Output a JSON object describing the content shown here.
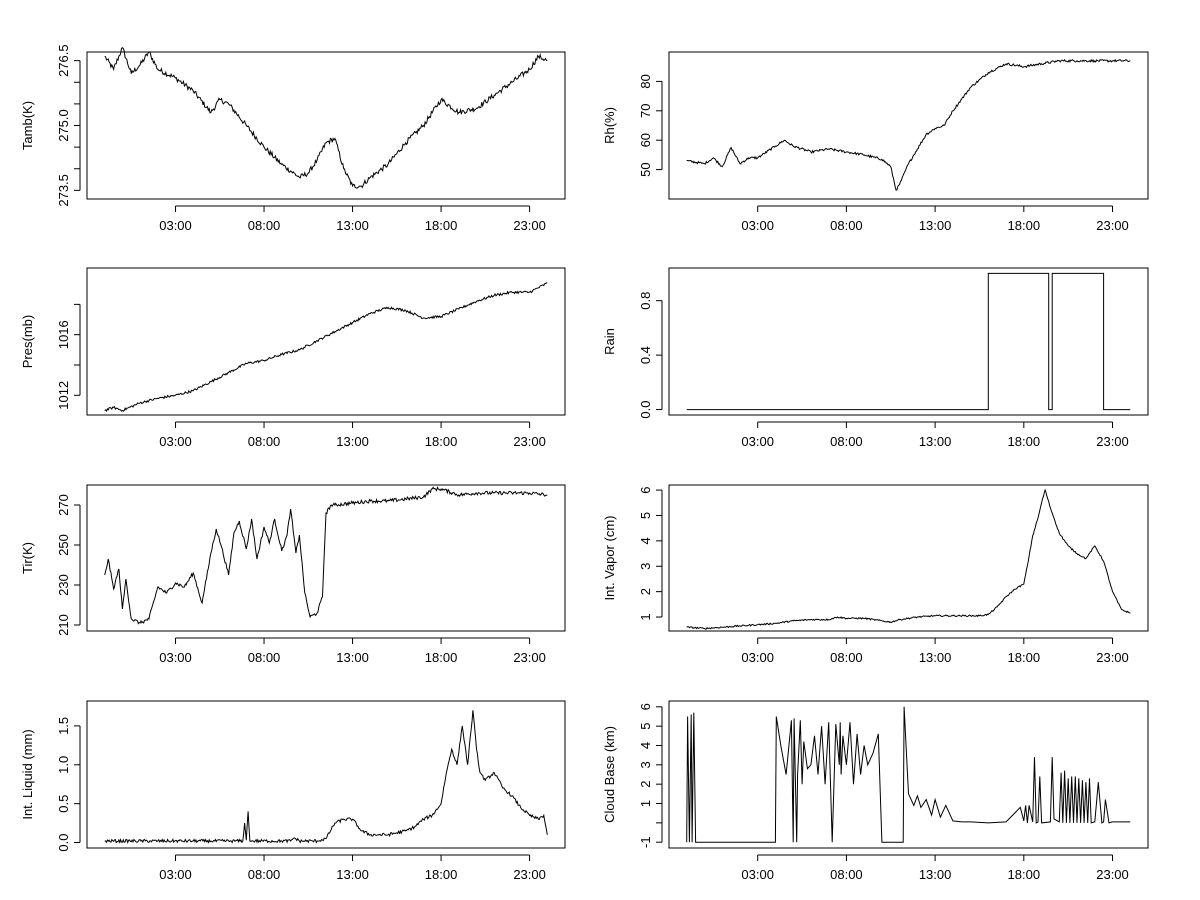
{
  "chart_data": [
    {
      "type": "line",
      "ylabel": "Tamb(K)",
      "xlabel": "",
      "x_unit": "hours",
      "xlim": [
        -2.0,
        25.0
      ],
      "ylim": [
        273.3,
        276.7
      ],
      "yticks": [
        273.5,
        274.0,
        274.5,
        275.0,
        275.5,
        276.0,
        276.5
      ],
      "ytick_labels": [
        "273.5",
        "",
        "",
        "275.0",
        "",
        "",
        "276.5"
      ],
      "xticks": [
        3,
        8,
        13,
        18,
        23
      ],
      "xtick_labels": [
        "03:00",
        "08:00",
        "13:00",
        "18:00",
        "23:00"
      ],
      "noise": 0.06,
      "series": [
        {
          "name": "Tamb",
          "x": [
            -1.0,
            -0.5,
            0.0,
            0.5,
            1.0,
            1.5,
            2.0,
            3.0,
            4.0,
            5.0,
            5.5,
            6.0,
            7.0,
            8.0,
            9.0,
            10.0,
            10.5,
            11.0,
            11.5,
            12.0,
            12.5,
            13.0,
            13.5,
            14.0,
            15.0,
            16.0,
            17.0,
            18.0,
            19.0,
            20.0,
            21.0,
            22.0,
            23.0,
            23.5,
            24.0
          ],
          "values": [
            276.6,
            276.3,
            276.8,
            276.2,
            276.4,
            276.7,
            276.3,
            276.1,
            275.8,
            275.3,
            275.6,
            275.5,
            275.0,
            274.5,
            274.1,
            273.8,
            273.9,
            274.2,
            274.6,
            274.7,
            274.0,
            273.6,
            273.6,
            273.8,
            274.1,
            274.6,
            275.0,
            275.6,
            275.3,
            275.4,
            275.7,
            276.0,
            276.3,
            276.6,
            276.5
          ]
        }
      ]
    },
    {
      "type": "line",
      "ylabel": "Rh(%)",
      "xlabel": "",
      "x_unit": "hours",
      "xlim": [
        -2.0,
        25.0
      ],
      "ylim": [
        40.0,
        90.0
      ],
      "yticks": [
        50,
        60,
        70,
        80
      ],
      "ytick_labels": [
        "50",
        "60",
        "70",
        "80"
      ],
      "xticks": [
        3,
        8,
        13,
        18,
        23
      ],
      "xtick_labels": [
        "03:00",
        "08:00",
        "13:00",
        "18:00",
        "23:00"
      ],
      "noise": 0.4,
      "series": [
        {
          "name": "Rh",
          "x": [
            -1.0,
            0.0,
            0.5,
            1.0,
            1.5,
            2.0,
            2.5,
            3.0,
            4.0,
            4.5,
            5.0,
            6.0,
            7.0,
            8.0,
            9.0,
            10.0,
            10.5,
            10.8,
            11.0,
            11.5,
            12.0,
            12.5,
            13.0,
            13.5,
            14.0,
            14.5,
            15.0,
            16.0,
            17.0,
            18.0,
            19.0,
            20.0,
            21.0,
            22.0,
            23.0,
            24.0
          ],
          "values": [
            53.0,
            52.0,
            54.0,
            51.0,
            57.5,
            52.0,
            54.0,
            54.0,
            58.0,
            60.0,
            58.0,
            56.0,
            57.0,
            56.0,
            55.0,
            53.5,
            51.0,
            43.0,
            45.0,
            52.0,
            57.0,
            62.0,
            64.0,
            65.0,
            70.0,
            74.0,
            78.0,
            83.0,
            86.0,
            85.0,
            86.0,
            87.0,
            87.0,
            87.0,
            87.0,
            87.0
          ]
        }
      ]
    },
    {
      "type": "line",
      "ylabel": "Pres(mb)",
      "xlabel": "",
      "x_unit": "hours",
      "xlim": [
        -2.0,
        25.0
      ],
      "ylim": [
        1010.7,
        1020.4
      ],
      "yticks": [
        1012,
        1014,
        1016,
        1018
      ],
      "ytick_labels": [
        "1012",
        "",
        "1016",
        ""
      ],
      "xticks": [
        3,
        8,
        13,
        18,
        23
      ],
      "xtick_labels": [
        "03:00",
        "08:00",
        "13:00",
        "18:00",
        "23:00"
      ],
      "noise": 0.08,
      "series": [
        {
          "name": "Pres",
          "x": [
            -1.0,
            -0.5,
            0.0,
            1.0,
            2.0,
            3.0,
            4.0,
            5.0,
            6.0,
            7.0,
            8.0,
            9.0,
            10.0,
            11.0,
            12.0,
            13.0,
            14.0,
            15.0,
            16.0,
            17.0,
            18.0,
            19.0,
            20.0,
            21.0,
            22.0,
            23.0,
            24.0
          ],
          "values": [
            1011.0,
            1011.2,
            1011.0,
            1011.5,
            1011.8,
            1012.0,
            1012.3,
            1012.9,
            1013.5,
            1014.1,
            1014.3,
            1014.7,
            1015.0,
            1015.6,
            1016.2,
            1016.8,
            1017.4,
            1017.8,
            1017.6,
            1017.1,
            1017.2,
            1017.7,
            1018.2,
            1018.6,
            1018.8,
            1018.8,
            1019.4
          ]
        }
      ]
    },
    {
      "type": "line",
      "ylabel": "Rain",
      "xlabel": "",
      "x_unit": "hours",
      "xlim": [
        -2.0,
        25.0
      ],
      "ylim": [
        -0.04,
        1.04
      ],
      "yticks": [
        0.0,
        0.4,
        0.8
      ],
      "ytick_labels": [
        "0.0",
        "0.4",
        "0.8"
      ],
      "xticks": [
        3,
        8,
        13,
        18,
        23
      ],
      "xtick_labels": [
        "03:00",
        "08:00",
        "13:00",
        "18:00",
        "23:00"
      ],
      "noise": 0,
      "series": [
        {
          "name": "Rain",
          "x": [
            -1.0,
            16.0,
            16.0,
            19.4,
            19.4,
            19.6,
            19.6,
            22.5,
            22.5,
            24.0
          ],
          "values": [
            0,
            0,
            1,
            1,
            0,
            0,
            1,
            1,
            0,
            0
          ]
        }
      ]
    },
    {
      "type": "line",
      "ylabel": "Tir(K)",
      "xlabel": "",
      "x_unit": "hours",
      "xlim": [
        -2.0,
        25.0
      ],
      "ylim": [
        207.0,
        280.0
      ],
      "yticks": [
        210,
        230,
        250,
        270
      ],
      "ytick_labels": [
        "210",
        "230",
        "250",
        "270"
      ],
      "xticks": [
        3,
        8,
        13,
        18,
        23
      ],
      "xtick_labels": [
        "03:00",
        "08:00",
        "13:00",
        "18:00",
        "23:00"
      ],
      "noise": 0.9,
      "series": [
        {
          "name": "Tir",
          "x": [
            -1.0,
            -0.8,
            -0.5,
            -0.2,
            0.0,
            0.2,
            0.5,
            1.0,
            1.5,
            2.0,
            2.5,
            3.0,
            3.5,
            4.0,
            4.5,
            5.0,
            5.3,
            5.6,
            6.0,
            6.3,
            6.6,
            7.0,
            7.3,
            7.6,
            8.0,
            8.3,
            8.6,
            9.0,
            9.3,
            9.5,
            9.8,
            10.0,
            10.3,
            10.6,
            11.0,
            11.3,
            11.5,
            11.8,
            12.0,
            13.0,
            14.0,
            15.0,
            16.0,
            17.0,
            17.5,
            18.0,
            19.0,
            20.0,
            21.0,
            22.0,
            23.0,
            24.0
          ],
          "values": [
            235.0,
            243.0,
            228.0,
            238.0,
            218.0,
            233.0,
            213.0,
            211.0,
            213.0,
            229.0,
            226.0,
            231.0,
            229.0,
            236.0,
            221.0,
            246.0,
            258.0,
            249.0,
            235.0,
            256.0,
            262.0,
            248.0,
            263.0,
            243.0,
            259.0,
            251.0,
            263.0,
            247.0,
            255.0,
            268.0,
            246.0,
            255.0,
            226.0,
            214.0,
            216.0,
            224.0,
            266.0,
            270.0,
            270.0,
            271.0,
            272.0,
            272.0,
            273.0,
            274.0,
            278.0,
            278.0,
            275.0,
            276.0,
            276.0,
            276.0,
            276.0,
            275.0
          ]
        }
      ]
    },
    {
      "type": "line",
      "ylabel": "Int. Vapor (cm)",
      "xlabel": "",
      "x_unit": "hours",
      "xlim": [
        -2.0,
        25.0
      ],
      "ylim": [
        0.45,
        6.2
      ],
      "yticks": [
        1,
        2,
        3,
        4,
        5,
        6
      ],
      "ytick_labels": [
        "1",
        "2",
        "3",
        "4",
        "5",
        "6"
      ],
      "xticks": [
        3,
        8,
        13,
        18,
        23
      ],
      "xtick_labels": [
        "03:00",
        "08:00",
        "13:00",
        "18:00",
        "23:00"
      ],
      "noise": 0.03,
      "series": [
        {
          "name": "Int. Vapor",
          "x": [
            -1.0,
            0.0,
            1.0,
            2.0,
            3.0,
            4.0,
            5.0,
            6.0,
            7.0,
            7.5,
            8.0,
            9.0,
            10.0,
            10.5,
            11.0,
            12.0,
            13.0,
            14.0,
            15.0,
            15.5,
            16.0,
            16.5,
            17.0,
            17.5,
            18.0,
            18.3,
            18.5,
            18.8,
            19.0,
            19.2,
            19.5,
            20.0,
            20.5,
            21.0,
            21.5,
            22.0,
            22.5,
            23.0,
            23.5,
            24.0
          ],
          "values": [
            0.6,
            0.55,
            0.6,
            0.65,
            0.7,
            0.75,
            0.85,
            0.9,
            0.9,
            1.0,
            0.95,
            0.95,
            0.85,
            0.8,
            0.9,
            1.0,
            1.05,
            1.05,
            1.05,
            1.05,
            1.1,
            1.4,
            1.8,
            2.1,
            2.3,
            3.4,
            4.2,
            4.9,
            5.5,
            6.0,
            5.3,
            4.3,
            3.8,
            3.5,
            3.3,
            3.8,
            3.2,
            2.0,
            1.3,
            1.15
          ]
        }
      ]
    },
    {
      "type": "line",
      "ylabel": "Int. Liquid (mm)",
      "xlabel": "",
      "x_unit": "hours",
      "xlim": [
        -2.0,
        25.0
      ],
      "ylim": [
        -0.07,
        1.82
      ],
      "yticks": [
        0.0,
        0.5,
        1.0,
        1.5
      ],
      "ytick_labels": [
        "0.0",
        "0.5",
        "1.0",
        "1.5"
      ],
      "xticks": [
        3,
        8,
        13,
        18,
        23
      ],
      "xtick_labels": [
        "03:00",
        "08:00",
        "13:00",
        "18:00",
        "23:00"
      ],
      "noise": 0.02,
      "series": [
        {
          "name": "Int. Liquid",
          "x": [
            -1.0,
            5.0,
            6.0,
            6.8,
            6.9,
            7.0,
            7.1,
            7.2,
            7.3,
            7.5,
            9.0,
            9.5,
            9.7,
            10.0,
            11.0,
            11.5,
            12.0,
            12.5,
            13.0,
            13.5,
            14.0,
            15.0,
            16.0,
            16.5,
            17.0,
            17.5,
            18.0,
            18.3,
            18.6,
            18.9,
            19.2,
            19.5,
            19.8,
            20.0,
            20.2,
            20.5,
            21.0,
            21.5,
            22.0,
            22.5,
            23.0,
            23.5,
            23.8,
            24.0
          ],
          "values": [
            0.02,
            0.02,
            0.02,
            0.02,
            0.25,
            0.03,
            0.4,
            0.02,
            0.02,
            0.02,
            0.02,
            0.02,
            0.06,
            0.02,
            0.02,
            0.05,
            0.25,
            0.3,
            0.3,
            0.15,
            0.1,
            0.1,
            0.15,
            0.2,
            0.3,
            0.35,
            0.5,
            0.9,
            1.2,
            1.0,
            1.5,
            1.0,
            1.7,
            1.2,
            0.9,
            0.8,
            0.9,
            0.7,
            0.6,
            0.45,
            0.35,
            0.3,
            0.35,
            0.1
          ]
        }
      ]
    },
    {
      "type": "line",
      "ylabel": "Cloud Base (km)",
      "xlabel": "",
      "x_unit": "hours",
      "xlim": [
        -2.0,
        25.0
      ],
      "ylim": [
        -1.3,
        6.3
      ],
      "yticks": [
        -1,
        0,
        1,
        2,
        3,
        4,
        5,
        6
      ],
      "ytick_labels": [
        "-1",
        "",
        "1",
        "2",
        "3",
        "4",
        "5",
        "6"
      ],
      "xticks": [
        3,
        8,
        13,
        18,
        23
      ],
      "xtick_labels": [
        "03:00",
        "08:00",
        "13:00",
        "18:00",
        "23:00"
      ],
      "noise": 0,
      "series": [
        {
          "name": "Cloud Base",
          "x": [
            -1.0,
            -0.95,
            -0.85,
            -0.75,
            -0.7,
            -0.6,
            -0.5,
            4.0,
            4.05,
            4.3,
            4.6,
            4.9,
            5.0,
            5.05,
            5.2,
            5.25,
            5.4,
            5.5,
            5.6,
            5.8,
            6.0,
            6.2,
            6.4,
            6.6,
            6.8,
            7.0,
            7.2,
            7.4,
            7.6,
            7.65,
            7.7,
            7.8,
            8.0,
            8.2,
            8.4,
            8.6,
            8.8,
            9.0,
            9.2,
            9.5,
            9.8,
            10.0,
            10.05,
            11.2,
            11.25,
            11.5,
            11.8,
            12.0,
            12.2,
            12.5,
            12.8,
            13.0,
            13.3,
            13.6,
            14.0,
            14.5,
            15.0,
            16.0,
            17.0,
            17.8,
            18.0,
            18.1,
            18.2,
            18.3,
            18.5,
            18.6,
            18.7,
            18.8,
            18.9,
            19.0,
            19.5,
            19.6,
            19.7,
            20.0,
            20.1,
            20.2,
            20.3,
            20.4,
            20.5,
            20.6,
            20.7,
            20.8,
            20.9,
            21.0,
            21.1,
            21.2,
            21.3,
            21.4,
            21.5,
            21.6,
            21.7,
            21.8,
            22.0,
            22.2,
            22.4,
            22.5,
            22.6,
            22.8,
            23.0,
            24.0
          ],
          "values": [
            -1.0,
            5.5,
            -1.0,
            5.6,
            -1.0,
            5.7,
            -1.0,
            -1.0,
            5.5,
            4.0,
            2.5,
            5.3,
            -1.0,
            5.4,
            -1.0,
            2.5,
            5.3,
            2.0,
            4.2,
            2.8,
            3.0,
            4.5,
            2.5,
            5.0,
            2.0,
            5.2,
            -1.0,
            5.1,
            3.0,
            5.2,
            2.5,
            4.5,
            3.0,
            5.2,
            2.0,
            4.6,
            2.5,
            4.0,
            3.0,
            3.6,
            4.6,
            -1.0,
            -1.0,
            -1.0,
            6.0,
            1.5,
            0.9,
            1.4,
            0.8,
            1.2,
            0.4,
            1.2,
            0.3,
            0.9,
            0.1,
            0.05,
            0.05,
            0.0,
            0.05,
            0.8,
            0.1,
            0.9,
            0.0,
            0.9,
            0.05,
            3.4,
            0.0,
            0.05,
            2.4,
            0.0,
            0.05,
            3.4,
            0.2,
            0.05,
            2.6,
            0.0,
            2.7,
            0.0,
            2.3,
            0.0,
            2.4,
            0.0,
            2.4,
            0.0,
            2.3,
            0.0,
            2.2,
            0.0,
            2.1,
            0.0,
            2.3,
            0.0,
            0.05,
            2.1,
            0.0,
            0.05,
            1.2,
            0.0,
            0.05,
            0.05
          ]
        }
      ]
    }
  ]
}
